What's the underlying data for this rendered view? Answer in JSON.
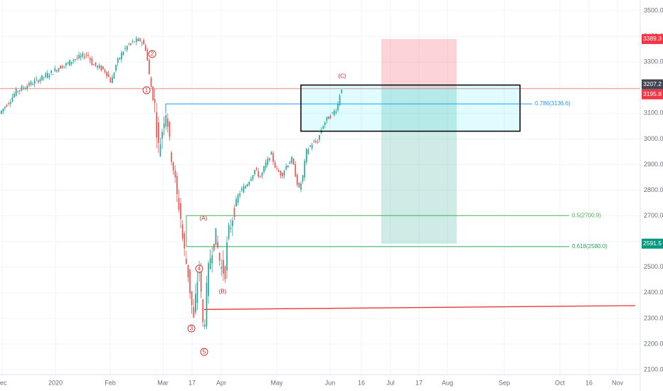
{
  "chart_data": {
    "type": "candlestick",
    "instrument_note": "",
    "ylim": [
      2080,
      3560
    ],
    "y_ticks": [
      "2100.0",
      "2200.0",
      "2300.0",
      "2400.0",
      "2500.0",
      "2600.0",
      "2700.0",
      "2800.0",
      "2900.0",
      "3000.0",
      "3100.0",
      "3200.0",
      "3300.0",
      "3400.0",
      "3500.0"
    ],
    "x_ticks": [
      "ec",
      "2020",
      "Feb",
      "Mar",
      "17",
      "Apr",
      "May",
      "Jun",
      "16",
      "Jul",
      "17",
      "Aug",
      "Sep",
      "Oct",
      "16",
      "Nov"
    ],
    "price_badges": [
      {
        "label": "3389.3",
        "color": "#f23645",
        "value": 3389.3
      },
      {
        "label": "3207.2",
        "color": "#434651",
        "value": 3207.2
      },
      {
        "label": "3195.8",
        "color": "#f23645",
        "value": 3195.8
      },
      {
        "label": "2591.5",
        "color": "#089981",
        "value": 2591.5
      }
    ],
    "fib_levels": [
      {
        "label": "0.786(3136.6)",
        "value": 3136.6,
        "color": "#2196f3"
      },
      {
        "label": "0.5(2700.9)",
        "value": 2700.9,
        "color": "#4caf50"
      },
      {
        "label": "0.618(2580.0)",
        "value": 2580.0,
        "color": "#26a65b"
      }
    ],
    "horizontal_lines": [
      {
        "name": "resistance",
        "value": 3195.8,
        "color": "#e57373"
      },
      {
        "name": "support-trend",
        "from": 2335,
        "to": 2350,
        "color": "#e53935"
      }
    ],
    "wave_labels": [
      {
        "label": "1",
        "value": 3200,
        "circled": true
      },
      {
        "label": "2",
        "value": 3390,
        "circled": true
      },
      {
        "label": "3",
        "value": 2240,
        "circled": true
      },
      {
        "label": "4",
        "value": 2520,
        "circled": true
      },
      {
        "label": "5",
        "value": 2170,
        "circled": true
      },
      {
        "label": "(A)",
        "value": 2690,
        "circled": false
      },
      {
        "label": "(B)",
        "value": 2400,
        "circled": false
      },
      {
        "label": "(C)",
        "value": 3250,
        "circled": false
      }
    ],
    "position_tool": {
      "entry": 3195.8,
      "stop": 3389.3,
      "target": 2591.5
    },
    "zone_box": {
      "top": 3210,
      "bottom": 3030
    },
    "colors": {
      "up": "#26a69a",
      "down": "#ef5350",
      "grid": "#f0f3fa",
      "axis_text": "#6a6d78"
    }
  }
}
